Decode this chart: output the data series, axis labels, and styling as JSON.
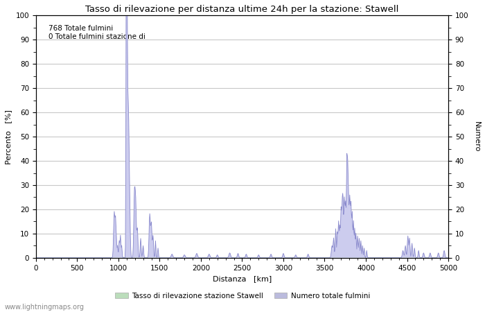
{
  "title": "Tasso di rilevazione per distanza ultime 24h per la stazione: Stawell",
  "xlabel": "Distanza   [km]",
  "ylabel_left": "Percento   [%]",
  "ylabel_right": "Numero",
  "annotation_line1": "768 Totale fulmini",
  "annotation_line2": "0 Totale fulmini stazione di",
  "xlim": [
    0,
    5000
  ],
  "ylim": [
    0,
    100
  ],
  "xticks": [
    0,
    500,
    1000,
    1500,
    2000,
    2500,
    3000,
    3500,
    4000,
    4500,
    5000
  ],
  "yticks": [
    0,
    10,
    20,
    30,
    40,
    50,
    60,
    70,
    80,
    90,
    100
  ],
  "legend_label_green": "Tasso di rilevazione stazione Stawell",
  "legend_label_blue": "Numero totale fulmini",
  "watermark": "www.lightningmaps.org",
  "bg_color": "#ffffff",
  "grid_color": "#c8c8c8",
  "line_color": "#8888cc",
  "fill_color_blue": "#ccccee",
  "fill_color_green": "#cceecc",
  "legend_patch_green": "#bbddbb",
  "legend_patch_blue": "#bbbbdd"
}
